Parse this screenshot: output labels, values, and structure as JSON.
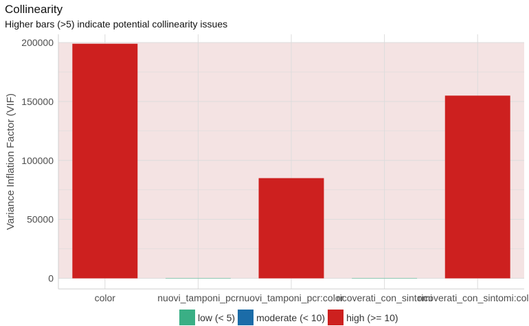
{
  "title": "Collinearity",
  "subtitle": "Higher bars (>5) indicate potential collinearity issues",
  "colors": {
    "low": "#3aaf85",
    "moderate": "#1b6ca8",
    "high": "#cd201f",
    "high_zone": "#f4e3e3",
    "grid": "#dcdcdc"
  },
  "legend": [
    {
      "label": "low (< 5)",
      "color": "#3aaf85"
    },
    {
      "label": "moderate (< 10)",
      "color": "#1b6ca8"
    },
    {
      "label": "high (>= 10)",
      "color": "#cd201f"
    }
  ],
  "chart_data": {
    "type": "bar",
    "title": "Collinearity",
    "subtitle": "Higher bars (>5) indicate potential collinearity issues",
    "xlabel": "",
    "ylabel": "Variance Inflation Factor (VIF)",
    "categories": [
      "color",
      "nuovi_tamponi_pcr",
      "nuovi_tamponi_pcr:color",
      "ricoverati_con_sintomi",
      "ricoverati_con_sintomi:color"
    ],
    "values": [
      199000,
      0,
      85000,
      0,
      155000
    ],
    "value_class": [
      "high",
      "low",
      "high",
      "low",
      "high"
    ],
    "yticks": [
      0,
      50000,
      100000,
      150000,
      200000
    ],
    "ylim": [
      -9000,
      207000
    ],
    "grid": true,
    "legend_position": "bottom"
  }
}
